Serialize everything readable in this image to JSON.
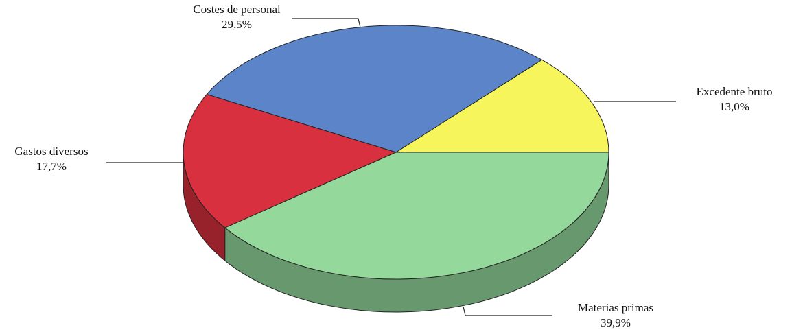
{
  "chart_data": {
    "type": "pie3d",
    "categories": [
      "Excedente bruto",
      "Costes de personal",
      "Gastos diversos",
      "Materias primas"
    ],
    "values": [
      13.0,
      29.5,
      17.7,
      39.9
    ],
    "value_labels": [
      "13,0%",
      "29,5%",
      "17,7%",
      "39,9%"
    ],
    "colors": [
      "#f6f55c",
      "#5b84c9",
      "#d9303f",
      "#94d99b"
    ]
  }
}
